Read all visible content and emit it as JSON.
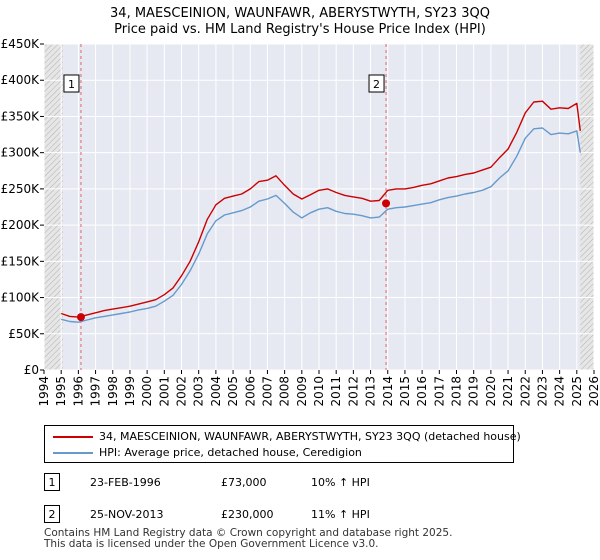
{
  "chart_data": {
    "type": "line",
    "title": "34, MAESCEINION, WAUNFAWR, ABERYSTWYTH, SY23 3QQ",
    "subtitle": "Price paid vs. HM Land Registry's House Price Index (HPI)",
    "xlim": [
      1994,
      2026
    ],
    "ylim": [
      0,
      450000
    ],
    "x_ticks": [
      1994,
      1995,
      1996,
      1997,
      1998,
      1999,
      2000,
      2001,
      2002,
      2003,
      2004,
      2005,
      2006,
      2007,
      2008,
      2009,
      2010,
      2011,
      2012,
      2013,
      2014,
      2015,
      2016,
      2017,
      2018,
      2019,
      2020,
      2021,
      2022,
      2023,
      2024,
      2025,
      2026
    ],
    "x_tick_labels": [
      "1994",
      "1995",
      "1996",
      "1997",
      "1998",
      "1999",
      "2000",
      "2001",
      "2002",
      "2003",
      "2004",
      "2005",
      "2006",
      "2007",
      "2008",
      "2009",
      "2010",
      "2011",
      "2012",
      "2013",
      "2014",
      "2015",
      "2016",
      "2017",
      "2018",
      "2019",
      "2020",
      "2021",
      "2022",
      "2023",
      "2024",
      "2025",
      "2026"
    ],
    "y_ticks": [
      0,
      50000,
      100000,
      150000,
      200000,
      250000,
      300000,
      350000,
      400000,
      450000
    ],
    "y_tick_labels": [
      "£0",
      "£50K",
      "£100K",
      "£150K",
      "£200K",
      "£250K",
      "£300K",
      "£350K",
      "£400K",
      "£450K"
    ],
    "hatched_ranges": [
      [
        1994,
        1995.1
      ],
      [
        2025.2,
        2026
      ]
    ],
    "series": [
      {
        "name": "34, MAESCEINION, WAUNFAWR, ABERYSTWYTH, SY23 3QQ (detached house)",
        "color": "#cc0000",
        "x": [
          1995,
          1995.5,
          1996,
          1996.5,
          1997,
          1997.5,
          1998,
          1998.5,
          1999,
          1999.5,
          2000,
          2000.5,
          2001,
          2001.5,
          2002,
          2002.5,
          2003,
          2003.5,
          2004,
          2004.5,
          2005,
          2005.5,
          2006,
          2006.5,
          2007,
          2007.5,
          2008,
          2008.5,
          2009,
          2009.5,
          2010,
          2010.5,
          2011,
          2011.5,
          2012,
          2012.5,
          2013,
          2013.5,
          2014,
          2014.5,
          2015,
          2015.5,
          2016,
          2016.5,
          2017,
          2017.5,
          2018,
          2018.5,
          2019,
          2019.5,
          2020,
          2020.5,
          2021,
          2021.5,
          2022,
          2022.5,
          2023,
          2023.5,
          2024,
          2024.5,
          2025,
          2025.2
        ],
        "y": [
          78000,
          74000,
          73000,
          76000,
          79000,
          82000,
          84000,
          86000,
          88000,
          91000,
          94000,
          97000,
          104000,
          113000,
          130000,
          150000,
          177000,
          208000,
          228000,
          237000,
          240000,
          243000,
          250000,
          260000,
          262000,
          268000,
          255000,
          243000,
          236000,
          242000,
          248000,
          250000,
          245000,
          241000,
          239000,
          237000,
          233000,
          234000,
          248000,
          250000,
          250000,
          252000,
          255000,
          257000,
          261000,
          265000,
          267000,
          270000,
          272000,
          276000,
          280000,
          293000,
          305000,
          328000,
          355000,
          370000,
          371000,
          360000,
          362000,
          361000,
          368000,
          330000
        ]
      },
      {
        "name": "HPI: Average price, detached house, Ceredigion",
        "color": "#6699cc",
        "x": [
          1995,
          1995.5,
          1996,
          1996.5,
          1997,
          1997.5,
          1998,
          1998.5,
          1999,
          1999.5,
          2000,
          2000.5,
          2001,
          2001.5,
          2002,
          2002.5,
          2003,
          2003.5,
          2004,
          2004.5,
          2005,
          2005.5,
          2006,
          2006.5,
          2007,
          2007.5,
          2008,
          2008.5,
          2009,
          2009.5,
          2010,
          2010.5,
          2011,
          2011.5,
          2012,
          2012.5,
          2013,
          2013.5,
          2014,
          2014.5,
          2015,
          2015.5,
          2016,
          2016.5,
          2017,
          2017.5,
          2018,
          2018.5,
          2019,
          2019.5,
          2020,
          2020.5,
          2021,
          2021.5,
          2022,
          2022.5,
          2023,
          2023.5,
          2024,
          2024.5,
          2025,
          2025.2
        ],
        "y": [
          70000,
          67000,
          66000,
          69000,
          72000,
          74000,
          76000,
          78000,
          80000,
          83000,
          85000,
          88000,
          95000,
          103000,
          118000,
          137000,
          160000,
          188000,
          206000,
          214000,
          217000,
          220000,
          225000,
          233000,
          236000,
          241000,
          230000,
          218000,
          210000,
          217000,
          222000,
          224000,
          219000,
          216000,
          215000,
          213000,
          210000,
          211000,
          222000,
          224000,
          225000,
          227000,
          229000,
          231000,
          235000,
          238000,
          240000,
          243000,
          245000,
          248000,
          253000,
          265000,
          275000,
          295000,
          320000,
          333000,
          334000,
          325000,
          327000,
          326000,
          330000,
          300000
        ]
      }
    ],
    "sales": [
      {
        "label": "1",
        "x": 1996.15,
        "y": 73000
      },
      {
        "label": "2",
        "x": 2013.9,
        "y": 230000
      }
    ]
  },
  "legend": {
    "property_label": "34, MAESCEINION, WAUNFAWR, ABERYSTWYTH, SY23 3QQ (detached house)",
    "hpi_label": "HPI: Average price, detached house, Ceredigion",
    "property_color": "#cc0000",
    "hpi_color": "#6699cc"
  },
  "annotations": [
    {
      "num": "1",
      "date": "23-FEB-1996",
      "price": "£73,000",
      "hpi": "10% ↑ HPI"
    },
    {
      "num": "2",
      "date": "25-NOV-2013",
      "price": "£230,000",
      "hpi": "11% ↑ HPI"
    }
  ],
  "footer": {
    "line1": "Contains HM Land Registry data © Crown copyright and database right 2025.",
    "line2": "This data is licensed under the Open Government Licence v3.0."
  }
}
